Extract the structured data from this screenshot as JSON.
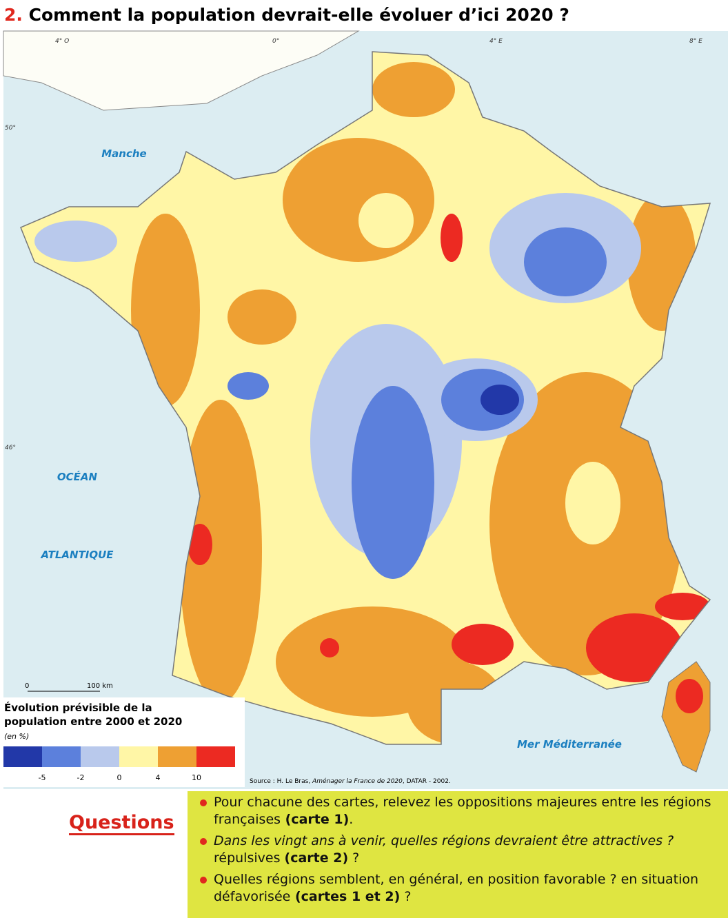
{
  "header": {
    "number": "2.",
    "title": "Comment la population devrait-elle évoluer d’ici 2020 ?"
  },
  "map": {
    "graticule": {
      "lon": [
        "4° O",
        "0°",
        "4° E",
        "8° E"
      ],
      "lat": [
        "50°",
        "46°"
      ]
    },
    "seas": [
      "Manche",
      "OCÉAN",
      "ATLANTIQUE",
      "Mer Méditerranée"
    ],
    "scale": [
      "0",
      "100 km"
    ]
  },
  "legend": {
    "title": [
      "Évolution prévisible de la",
      "population entre 2000 et 2020"
    ],
    "unit": "(en %)",
    "colors": [
      "#2238a8",
      "#5c80dc",
      "#b9c9ec",
      "#fff6a6",
      "#eea033",
      "#ec2a22"
    ],
    "ticks": [
      -5,
      -2,
      0,
      4,
      10
    ]
  },
  "source": [
    "Source : H. Le Bras, ",
    "Aménager la France de 2020",
    ", DATAR - 2002."
  ],
  "questions": {
    "heading": "Questions",
    "items": [
      [
        "Pour chacune des cartes, relevez les oppositions majeures entre les régions françaises",
        " (carte 1)",
        "."
      ],
      [
        "Dans les vingt ans à venir, quelles régions devraient être attractives ?",
        " répulsives ",
        "(carte 2)",
        " ?"
      ],
      [
        "Quelles régions semblent, en général, en position favorable ? en situation défavorisée",
        " (cartes 1 et 2)",
        " ?"
      ]
    ]
  }
}
